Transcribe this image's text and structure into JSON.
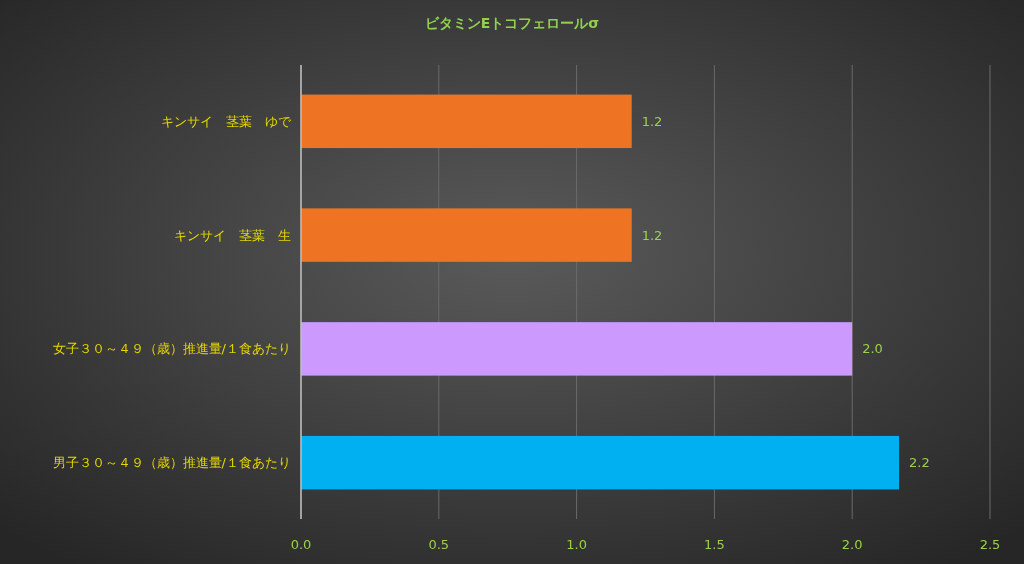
{
  "chart_data": {
    "type": "bar",
    "orientation": "horizontal",
    "title": "ビタミンEトコフェロールσ",
    "categories": [
      "キンサイ　茎葉　ゆで",
      "キンサイ　茎葉　生",
      "女子３０～４９（歳）推進量/１食あたり",
      "男子３０～４９（歳）推進量/１食あたり"
    ],
    "values": [
      1.2,
      1.2,
      2.0,
      2.17
    ],
    "value_labels": [
      "1.2",
      "1.2",
      "2.0",
      "2.2"
    ],
    "colors": [
      "#ee7424",
      "#ee7424",
      "#cc99ff",
      "#00b0f0"
    ],
    "xlim": [
      0,
      2.5
    ],
    "xticks": [
      {
        "value": 0,
        "label": "0.0"
      },
      {
        "value": 0.5,
        "label": "0.5"
      },
      {
        "value": 1,
        "label": "1.0"
      },
      {
        "value": 1.5,
        "label": "1.5"
      },
      {
        "value": 2,
        "label": "2.0"
      },
      {
        "value": 2.5,
        "label": "2.5"
      }
    ],
    "grid": "x"
  }
}
